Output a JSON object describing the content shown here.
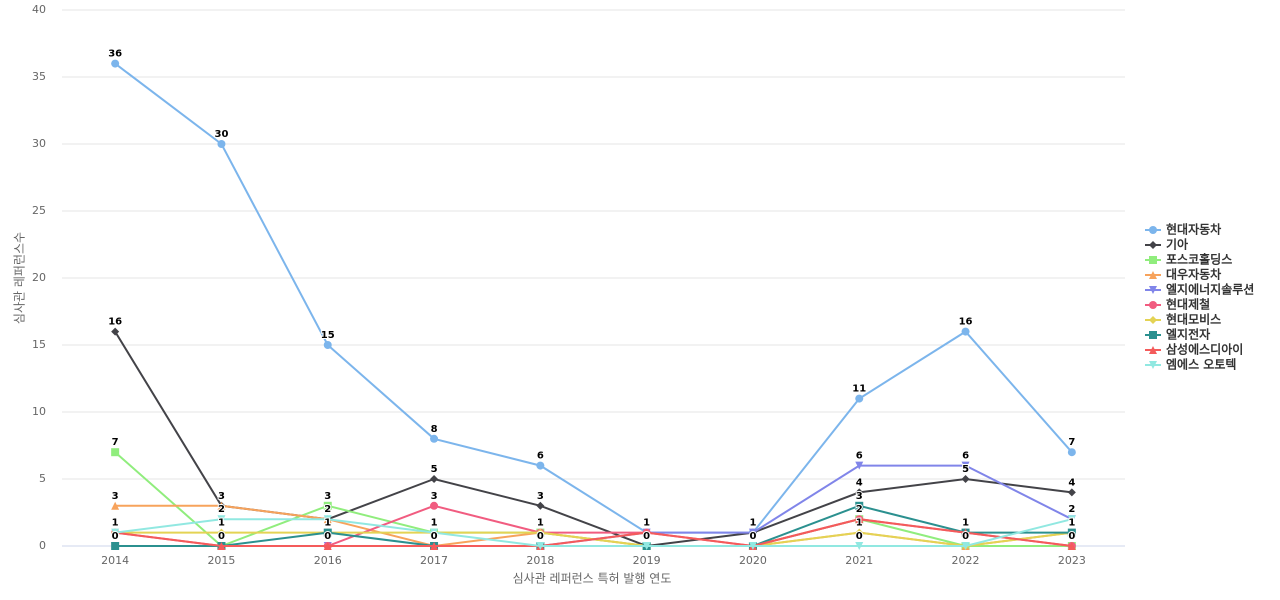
{
  "chart_data": {
    "type": "line",
    "x_label": "심사관 레퍼런스 특허 발행 연도",
    "y_label": "심사관 레퍼런스수",
    "categories": [
      "2014",
      "2015",
      "2016",
      "2017",
      "2018",
      "2019",
      "2020",
      "2021",
      "2022",
      "2023"
    ],
    "ylim": [
      0,
      40
    ],
    "yticks": [
      0,
      5,
      10,
      15,
      20,
      25,
      30,
      35,
      40
    ],
    "grid": true,
    "series": [
      {
        "name": "현대자동차",
        "color": "#7cb5ec",
        "symbol": "circle",
        "values": [
          36,
          30,
          15,
          8,
          6,
          1,
          1,
          11,
          16,
          7
        ]
      },
      {
        "name": "기아",
        "color": "#434348",
        "symbol": "diamond",
        "values": [
          16,
          3,
          2,
          5,
          3,
          0,
          1,
          4,
          5,
          4
        ]
      },
      {
        "name": "포스코홀딩스",
        "color": "#90ed7d",
        "symbol": "square",
        "values": [
          7,
          0,
          3,
          1,
          1,
          0,
          0,
          2,
          0,
          0
        ]
      },
      {
        "name": "대우자동차",
        "color": "#f7a35c",
        "symbol": "triangle",
        "values": [
          3,
          3,
          2,
          0,
          1,
          0,
          0,
          1,
          0,
          1
        ]
      },
      {
        "name": "엘지에너지솔루션",
        "color": "#8085e9",
        "symbol": "triangle-down",
        "values": [
          0,
          0,
          0,
          0,
          0,
          1,
          1,
          6,
          6,
          2
        ]
      },
      {
        "name": "현대제철",
        "color": "#f15c80",
        "symbol": "circle",
        "values": [
          1,
          0,
          0,
          3,
          1,
          1,
          0,
          2,
          1,
          0
        ]
      },
      {
        "name": "현대모비스",
        "color": "#e4d354",
        "symbol": "diamond",
        "values": [
          1,
          1,
          1,
          1,
          1,
          0,
          0,
          1,
          0,
          1
        ]
      },
      {
        "name": "엘지전자",
        "color": "#2b908f",
        "symbol": "square",
        "values": [
          0,
          0,
          1,
          0,
          0,
          0,
          0,
          3,
          1,
          1
        ]
      },
      {
        "name": "삼성에스디아이",
        "color": "#f45b5b",
        "symbol": "triangle",
        "values": [
          1,
          0,
          0,
          0,
          0,
          1,
          0,
          2,
          1,
          0
        ]
      },
      {
        "name": "엠에스 오토텍",
        "color": "#91e8e1",
        "symbol": "triangle-down",
        "values": [
          1,
          2,
          2,
          1,
          0,
          0,
          0,
          0,
          0,
          2
        ]
      }
    ]
  }
}
